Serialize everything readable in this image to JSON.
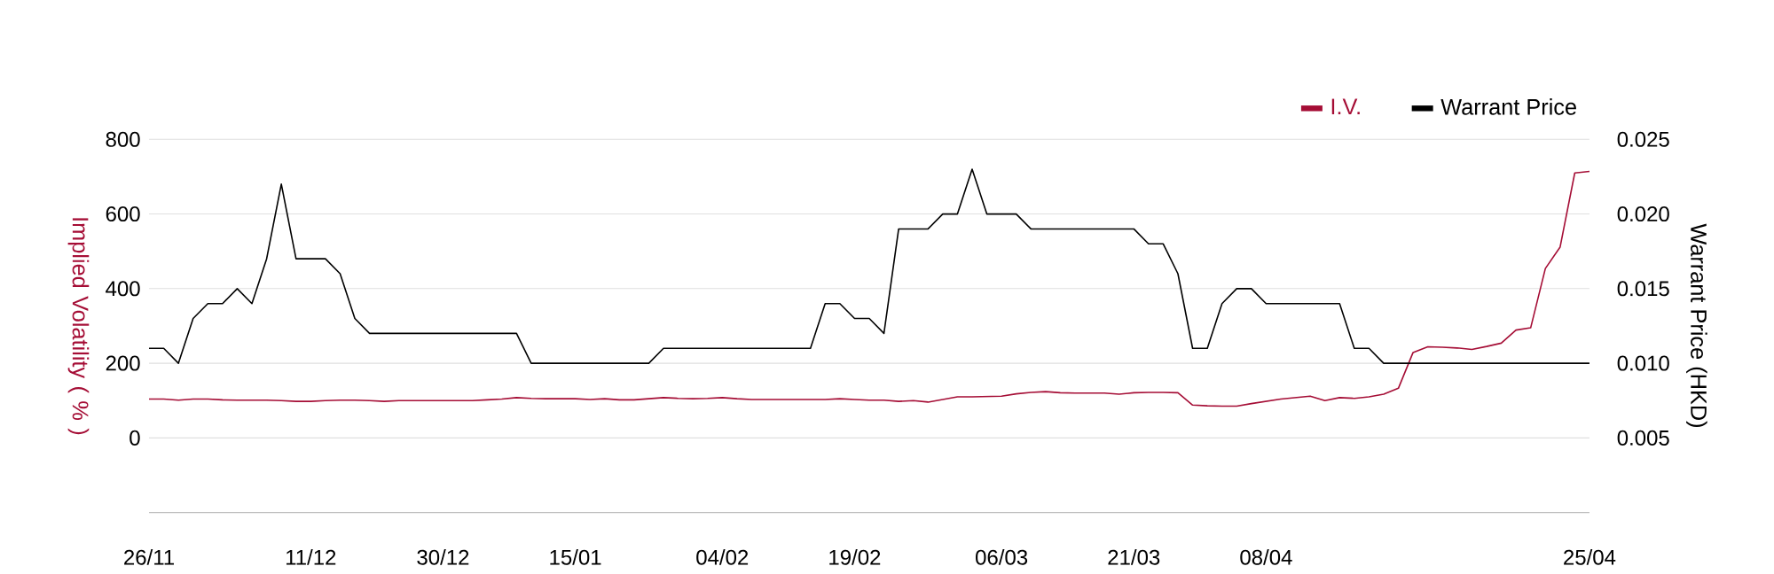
{
  "chart_data": {
    "type": "line",
    "ylabel": "Implied Volatility ( % )",
    "y2label": "Warrant Price (HKD)",
    "categories": [
      "26/11",
      null,
      null,
      null,
      null,
      null,
      null,
      null,
      null,
      null,
      null,
      "11/12",
      null,
      null,
      null,
      null,
      null,
      null,
      null,
      null,
      "30/12",
      null,
      null,
      null,
      null,
      null,
      null,
      null,
      null,
      "15/01",
      null,
      null,
      null,
      null,
      null,
      null,
      null,
      null,
      null,
      "04/02",
      null,
      null,
      null,
      null,
      null,
      null,
      null,
      null,
      "19/02",
      null,
      null,
      null,
      null,
      null,
      null,
      null,
      null,
      null,
      "06/03",
      null,
      null,
      null,
      null,
      null,
      null,
      null,
      null,
      "21/03",
      null,
      null,
      null,
      null,
      null,
      null,
      null,
      null,
      "08/04",
      null,
      null,
      null,
      null,
      null,
      null,
      null,
      null,
      null,
      null,
      null,
      null,
      null,
      null,
      null,
      null,
      null,
      null,
      null,
      null,
      null,
      "25/04"
    ],
    "series": [
      {
        "name": "I.V.",
        "color": "#a50d35",
        "values": [
          104,
          104,
          101,
          104,
          104,
          102,
          101,
          101,
          101,
          100,
          98,
          98,
          100,
          101,
          101,
          100,
          98,
          100,
          100,
          100,
          100,
          100,
          100,
          102,
          104,
          108,
          106,
          105,
          105,
          105,
          103,
          105,
          102,
          102,
          105,
          108,
          106,
          105,
          106,
          108,
          105,
          103,
          103,
          103,
          103,
          103,
          103,
          105,
          103,
          101,
          101,
          98,
          100,
          96,
          103,
          110,
          110,
          111,
          112,
          118,
          122,
          124,
          121,
          120,
          120,
          120,
          117,
          121,
          122,
          122,
          121,
          88,
          86,
          85,
          85,
          92,
          98,
          104,
          108,
          112,
          100,
          108,
          106,
          110,
          117,
          133,
          229,
          244,
          243,
          241,
          237,
          245,
          254,
          289,
          295,
          454,
          511,
          710,
          714
        ]
      },
      {
        "name": "Warrant Price",
        "color": "#000000",
        "axis": "y2",
        "values": [
          0.011,
          0.011,
          0.01,
          0.013,
          0.014,
          0.014,
          0.015,
          0.014,
          0.017,
          0.022,
          0.017,
          0.017,
          0.017,
          0.016,
          0.013,
          0.012,
          0.012,
          0.012,
          0.012,
          0.012,
          0.012,
          0.012,
          0.012,
          0.012,
          0.012,
          0.012,
          0.01,
          0.01,
          0.01,
          0.01,
          0.01,
          0.01,
          0.01,
          0.01,
          0.01,
          0.011,
          0.011,
          0.011,
          0.011,
          0.011,
          0.011,
          0.011,
          0.011,
          0.011,
          0.011,
          0.011,
          0.014,
          0.014,
          0.013,
          0.013,
          0.012,
          0.019,
          0.019,
          0.019,
          0.02,
          0.02,
          0.023,
          0.02,
          0.02,
          0.02,
          0.019,
          0.019,
          0.019,
          0.019,
          0.019,
          0.019,
          0.019,
          0.019,
          0.018,
          0.018,
          0.016,
          0.011,
          0.011,
          0.014,
          0.015,
          0.015,
          0.014,
          0.014,
          0.014,
          0.014,
          0.014,
          0.014,
          0.011,
          0.011,
          0.01,
          0.01,
          0.01,
          0.01,
          0.01,
          0.01,
          0.01,
          0.01,
          0.01,
          0.01,
          0.01,
          0.01,
          0.01,
          0.01,
          0.01
        ]
      }
    ],
    "ylim": [
      -200,
      800
    ],
    "yticks": [
      0,
      200,
      400,
      600,
      800
    ],
    "y2lim": [
      0,
      0.025
    ],
    "y2ticks": [
      {
        "value": 0.005,
        "label": "0.005"
      },
      {
        "value": 0.01,
        "label": "0.010"
      },
      {
        "value": 0.015,
        "label": "0.015"
      },
      {
        "value": 0.02,
        "label": "0.020"
      },
      {
        "value": 0.025,
        "label": "0.025"
      }
    ],
    "grid": "y",
    "legend": "top right"
  }
}
